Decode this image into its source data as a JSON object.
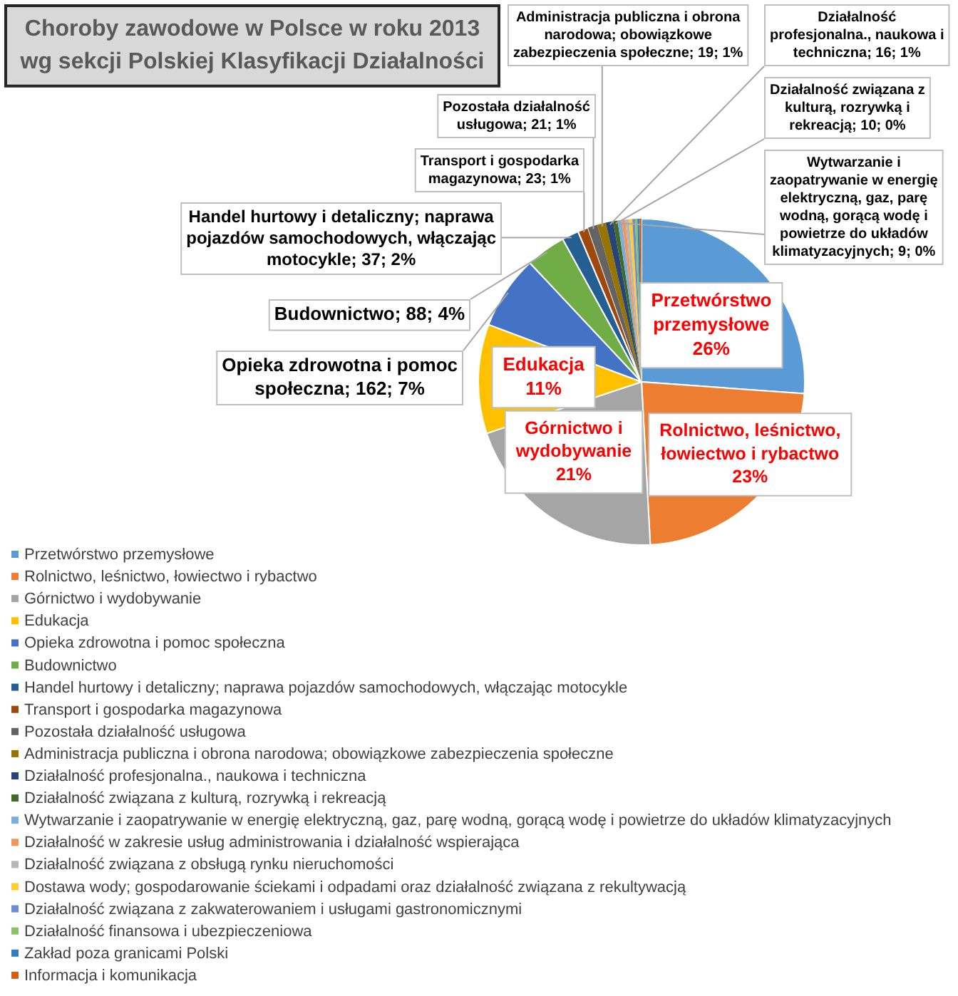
{
  "chart_data": {
    "type": "pie",
    "title": "Choroby zawodowe w Polsce w roku 2013 wg sekcji Polskiej Klasyfikacji Działalności",
    "categories": [
      "Przetwórstwo przemysłowe",
      "Rolnictwo, leśnictwo, łowiectwo i rybactwo",
      "Górnictwo i wydobywanie",
      "Edukacja",
      "Opieka zdrowotna i pomoc społeczna",
      "Budownictwo",
      "Handel hurtowy i detaliczny; naprawa pojazdów samochodowych, włączając motocykle",
      "Transport i gospodarka magazynowa",
      "Pozostała działalność usługowa",
      "Administracja publiczna i obrona narodowa; obowiązkowe zabezpieczenia społeczne",
      "Działalność profesjonalna., naukowa i techniczna",
      "Działalność związana z kulturą, rozrywką i rekreacją",
      "Wytwarzanie i zaopatrywanie w energię elektryczną, gaz, parę wodną, gorącą wodę i powietrze do układów klimatyzacyjnych",
      "Działalność w zakresie usług administrowania i działalność wspierająca",
      "Działalność związana z obsługą rynku nieruchomości",
      "Dostawa wody; gospodarowanie ściekami i odpadami oraz działalność związana z rekultywacją",
      "Działalność związana z zakwaterowaniem i usługami gastronomicznymi",
      "Działalność finansowa i ubezpieczeniowa",
      "Zakład poza granicami Polski",
      "Informacja i komunikacja"
    ],
    "values": [
      580,
      510,
      460,
      240,
      162,
      88,
      37,
      23,
      21,
      19,
      16,
      10,
      9,
      8,
      8,
      7,
      6,
      5,
      5,
      4
    ],
    "colors": [
      "#5b9bd5",
      "#ed7d31",
      "#a5a5a5",
      "#ffc000",
      "#4472c4",
      "#70ad47",
      "#255e91",
      "#9e480e",
      "#636363",
      "#997300",
      "#264478",
      "#43682b",
      "#7cafdd",
      "#f1975a",
      "#b7b7b7",
      "#ffcd33",
      "#698ed0",
      "#8cc168",
      "#327dc2",
      "#d26012"
    ],
    "value_labels": [
      "Przetwórstwo przemysłowe 26%",
      "Rolnictwo, leśnictwo, łowiectwo i rybactwo 23%",
      "Górnictwo i wydobywanie 21%",
      "Edukacja 11%",
      "Opieka zdrowotna i pomoc społeczna; 162; 7%",
      "Budownictwo; 88; 4%",
      "Handel hurtowy i detaliczny; naprawa pojazdów samochodowych, włączając motocykle; 37; 2%",
      "Transport i gospodarka magazynowa; 23; 1%",
      "Pozostała działalność usługowa; 21; 1%",
      "Administracja publiczna i obrona narodowa; obowiązkowe zabezpieczenia społeczne; 19; 1%",
      "Działalność profesjonalna., naukowa i techniczna; 16; 1%",
      "Działalność związana z kulturą, rozrywką i rekreacją; 10; 0%",
      "Wytwarzanie i zaopatrywanie w energię elektryczną, gaz, parę wodną, gorącą wodę i powietrze do układów klimatyzacyjnych; 9; 0%",
      null,
      null,
      null,
      null,
      null,
      null,
      null
    ],
    "legend": "bottom"
  }
}
